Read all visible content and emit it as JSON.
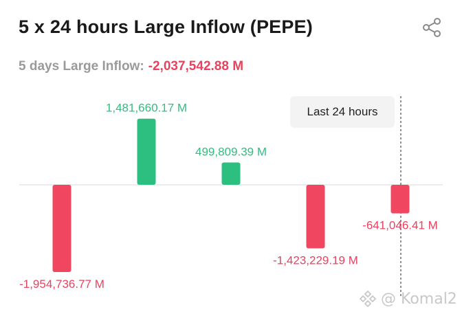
{
  "header": {
    "title": "5 x 24 hours Large Inflow (PEPE)",
    "summary_label": "5 days Large Inflow:",
    "summary_value": "-2,037,542.88 M"
  },
  "badge": {
    "label": "Last 24 hours"
  },
  "watermark": {
    "text": "@ Komal2"
  },
  "icons": {
    "share": "share-icon",
    "watermark_logo": "logo-icon"
  },
  "colors": {
    "positive": "#2dbf7f",
    "negative": "#f0465f",
    "label_negative": "#e8425f",
    "label_positive": "#2dbf7f"
  },
  "chart_data": {
    "type": "bar",
    "title": "5 x 24 hours Large Inflow (PEPE)",
    "unit": "M",
    "values": [
      -1954736.77,
      1481660.17,
      499809.39,
      -1423229.19,
      -641046.41
    ],
    "value_labels": [
      "-1,954,736.77 M",
      "1,481,660.17 M",
      "499,809.39 M",
      "-1,423,229.19 M",
      "-641,046.41 M"
    ],
    "ylim": [
      -1954736.77,
      1481660.17
    ],
    "grid": false,
    "legend": "none"
  }
}
